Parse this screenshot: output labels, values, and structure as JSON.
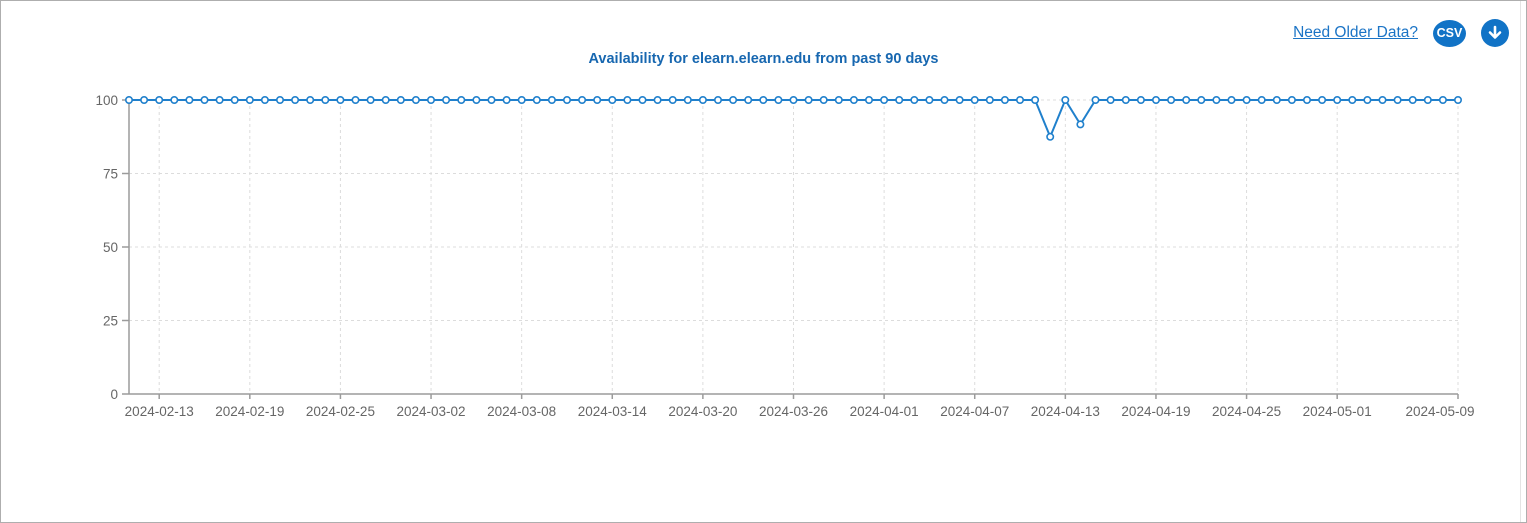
{
  "header": {
    "older_data_link": "Need Older Data?",
    "csv_button_label": "CSV",
    "download_icon": "down-arrow-icon",
    "accent_color": "#1173c6",
    "link_color": "#1b74c6"
  },
  "chart_data": {
    "type": "line",
    "title": "Availability for elearn.elearn.edu from past 90 days",
    "title_color": "#1767b0",
    "x_start_date": "2024-02-11",
    "x_end_date": "2024-05-09",
    "x_frequency": "daily",
    "values": [
      100,
      100,
      100,
      100,
      100,
      100,
      100,
      100,
      100,
      100,
      100,
      100,
      100,
      100,
      100,
      100,
      100,
      100,
      100,
      100,
      100,
      100,
      100,
      100,
      100,
      100,
      100,
      100,
      100,
      100,
      100,
      100,
      100,
      100,
      100,
      100,
      100,
      100,
      100,
      100,
      100,
      100,
      100,
      100,
      100,
      100,
      100,
      100,
      100,
      100,
      100,
      100,
      100,
      100,
      100,
      100,
      100,
      100,
      100,
      100,
      100,
      87.5,
      100,
      91.7,
      100,
      100,
      100,
      100,
      100,
      100,
      100,
      100,
      100,
      100,
      100,
      100,
      100,
      100,
      100,
      100,
      100,
      100,
      100,
      100,
      100,
      100,
      100,
      100,
      100
    ],
    "notable_points": [
      {
        "date": "2024-04-12",
        "value": 87.5
      },
      {
        "date": "2024-04-14",
        "value": 91.7
      }
    ],
    "x_tick_labels": [
      "2024-02-13",
      "2024-02-19",
      "2024-02-25",
      "2024-03-02",
      "2024-03-08",
      "2024-03-14",
      "2024-03-20",
      "2024-03-26",
      "2024-04-01",
      "2024-04-07",
      "2024-04-13",
      "2024-04-19",
      "2024-04-25",
      "2024-05-01",
      "2024-05-09"
    ],
    "x_tick_day_indices": [
      2,
      8,
      14,
      20,
      26,
      32,
      38,
      44,
      50,
      56,
      62,
      68,
      74,
      80,
      88
    ],
    "y_ticks": [
      100,
      75,
      50,
      25,
      0
    ],
    "ylim": [
      0,
      100
    ],
    "grid": "dashed",
    "legend": "none",
    "line_color": "#2080cc",
    "marker": "open-circle",
    "marker_fill": "#ffffff",
    "grid_color": "#dcdcdc",
    "axis_color": "#9b9b9b",
    "label_color": "#666666"
  }
}
